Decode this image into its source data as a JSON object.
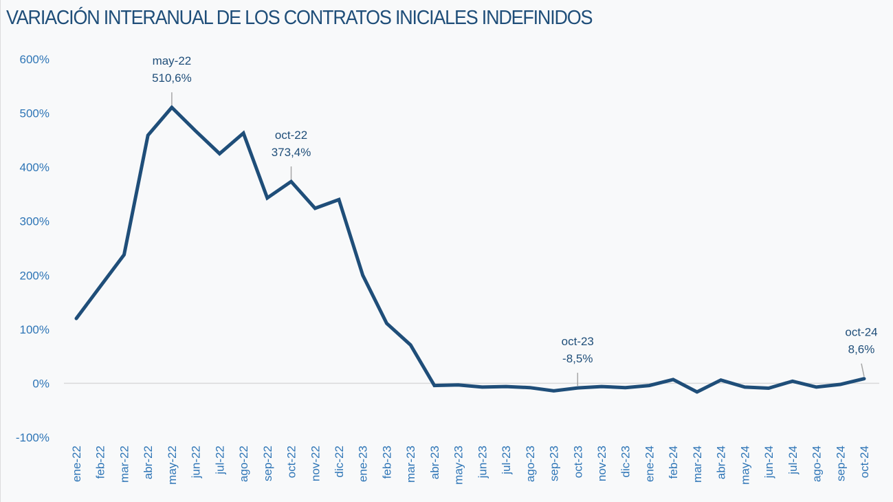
{
  "chart_data": {
    "type": "line",
    "title": "VARIACIÓN INTERANUAL DE LOS CONTRATOS INICIALES INDEFINIDOS",
    "xlabel": "",
    "ylabel": "",
    "ylim": [
      -100,
      600
    ],
    "yticks": [
      -100,
      0,
      100,
      200,
      300,
      400,
      500,
      600
    ],
    "ytick_labels": [
      "-100%",
      "0%",
      "100%",
      "200%",
      "300%",
      "400%",
      "500%",
      "600%"
    ],
    "grid": false,
    "zero_line": true,
    "legend": "none",
    "colors": {
      "line": "#1f4e79",
      "axis_text": "#2e75b6",
      "title": "#1f4e79",
      "zero_line": "#d9d9d9",
      "leader": "#a6a6a6"
    },
    "categories": [
      "ene-22",
      "feb-22",
      "mar-22",
      "abr-22",
      "may-22",
      "jun-22",
      "jul-22",
      "ago-22",
      "sep-22",
      "oct-22",
      "nov-22",
      "dic-22",
      "ene-23",
      "feb-23",
      "mar-23",
      "abr-23",
      "may-23",
      "jun-23",
      "jul-23",
      "ago-23",
      "sep-23",
      "oct-23",
      "nov-23",
      "dic-23",
      "ene-24",
      "feb-24",
      "mar-24",
      "abr-24",
      "may-24",
      "jun-24",
      "jul-24",
      "ago-24",
      "sep-24",
      "oct-24"
    ],
    "series": [
      {
        "name": "Variación interanual",
        "values": [
          120,
          179,
          238,
          459,
          510.6,
          467,
          425,
          463,
          343,
          373.4,
          324,
          340,
          200,
          111,
          71,
          -4,
          -3,
          -7,
          -6,
          -8,
          -14,
          -8.5,
          -6,
          -8,
          -4,
          7,
          -16,
          6,
          -7,
          -9,
          4,
          -7,
          -2,
          8.6
        ]
      }
    ],
    "annotations": [
      {
        "category": "may-22",
        "label": "may-22",
        "value_label": "510,6%",
        "index": 4
      },
      {
        "category": "oct-22",
        "label": "oct-22",
        "value_label": "373,4%",
        "index": 9
      },
      {
        "category": "oct-23",
        "label": "oct-23",
        "value_label": "-8,5%",
        "index": 21
      },
      {
        "category": "oct-24",
        "label": "oct-24",
        "value_label": "8,6%",
        "index": 33
      }
    ]
  }
}
